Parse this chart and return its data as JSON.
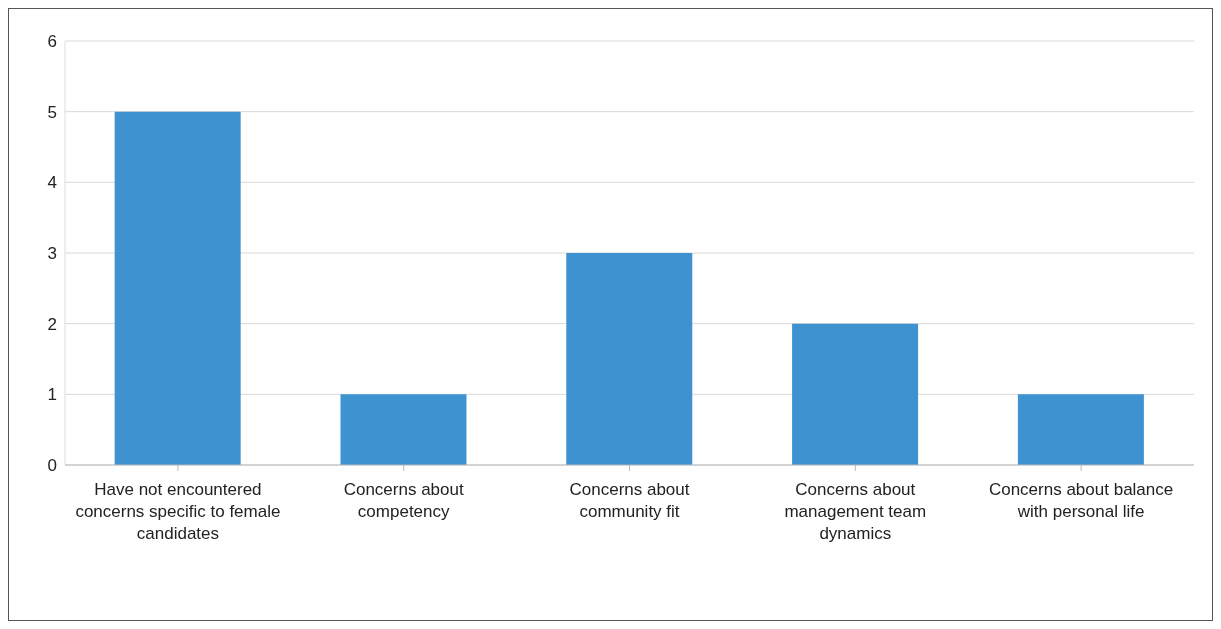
{
  "chart_data": {
    "type": "bar",
    "categories": [
      "Have not encountered concerns specific to female candidates",
      "Concerns about competency",
      "Concerns about community fit",
      "Concerns about management team dynamics",
      "Concerns about balance with personal life"
    ],
    "values": [
      5,
      1,
      3,
      2,
      1
    ],
    "color": "#3d92cf",
    "ylim": [
      0,
      6
    ],
    "yticks": [
      0,
      1,
      2,
      3,
      4,
      5,
      6
    ],
    "grid": "y"
  }
}
